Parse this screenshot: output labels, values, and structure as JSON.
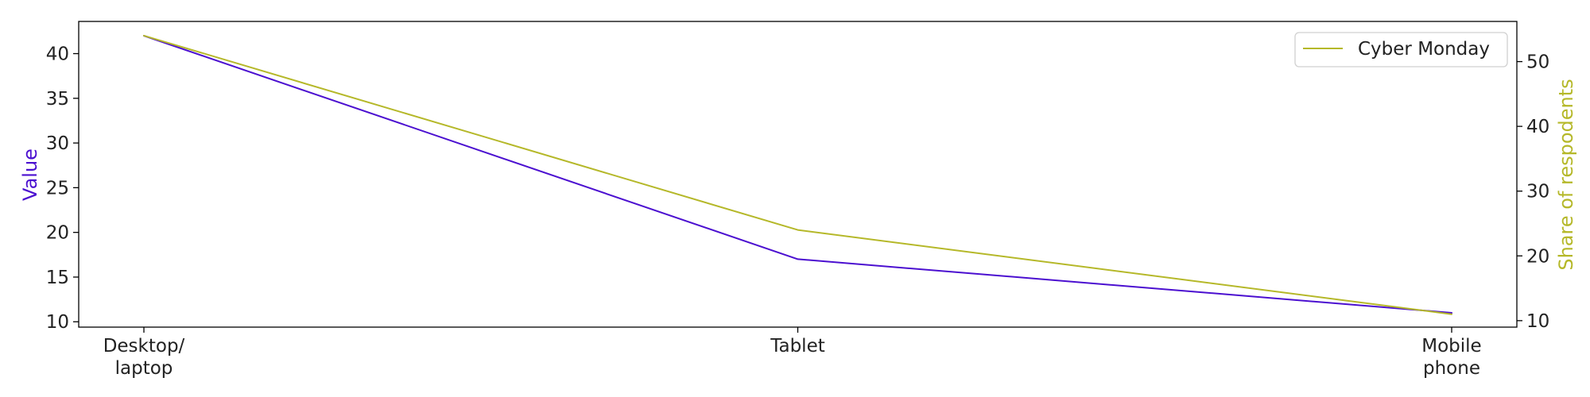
{
  "chart_data": {
    "type": "line",
    "categories": [
      "Desktop/\nlaptop",
      "Tablet",
      "Mobile\nphone"
    ],
    "series": [
      {
        "name": "",
        "axis": "left",
        "color": "#4b0fd0",
        "values": [
          42,
          17,
          11
        ]
      },
      {
        "name": "Cyber Monday",
        "axis": "right",
        "color": "#b5b829",
        "values": [
          54,
          24,
          11
        ]
      }
    ],
    "ylabel_left": "Value",
    "ylabel_right": "Share of respodents",
    "ylim_left": [
      9.4,
      43.6
    ],
    "ylim_right": [
      9.0,
      56.2
    ],
    "yticks_left": [
      10,
      15,
      20,
      25,
      30,
      35,
      40
    ],
    "yticks_right": [
      10,
      20,
      30,
      40,
      50
    ],
    "grid": false,
    "legend_position": "top-right",
    "colors": {
      "left_axis_label": "#4b0fd0",
      "right_axis_label": "#b5b829",
      "axes": "#000000"
    }
  }
}
